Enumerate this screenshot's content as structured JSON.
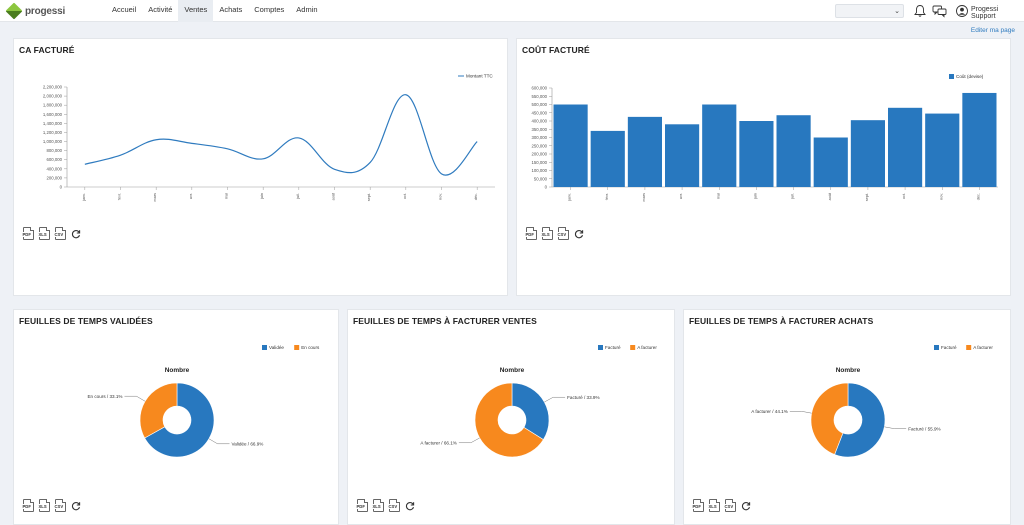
{
  "nav": {
    "logo": "progessi",
    "items": [
      "Accueil",
      "Activité",
      "Ventes",
      "Achats",
      "Comptes",
      "Admin"
    ],
    "active_index": 2
  },
  "header": {
    "user_name": "Progessi Support",
    "edit_page": "Editer ma page"
  },
  "export": {
    "pdf": "PDF",
    "xls": "XLS",
    "csv": "CSV"
  },
  "accent": "#2f7bbf",
  "panels": {
    "ca": {
      "title": "CA FACTURÉ",
      "chart_data": {
        "type": "line",
        "categories": [
          "janv.",
          "févr.",
          "mars",
          "avr.",
          "mai",
          "juin",
          "juil.",
          "août",
          "sept.",
          "oct.",
          "nov.",
          "déc."
        ],
        "series": [
          {
            "name": "Montant TTC",
            "values": [
              500000,
              700000,
              1040000,
              960000,
              840000,
              620000,
              1080000,
              390000,
              540000,
              2030000,
              290000,
              1000000
            ]
          }
        ],
        "ylim": [
          0,
          2200000
        ],
        "yticks": [
          "0",
          "200,000",
          "400,000",
          "600,000",
          "800,000",
          "1,000,000",
          "1,200,000",
          "1,400,000",
          "1,600,000",
          "1,800,000",
          "2,000,000",
          "2,200,000"
        ],
        "color": "#2f7bbf",
        "legend": "top-right"
      }
    },
    "cout": {
      "title": "COÛT FACTURÉ",
      "chart_data": {
        "type": "bar",
        "categories": [
          "janv.",
          "févr.",
          "mars",
          "avr.",
          "mai",
          "juin",
          "juil.",
          "août",
          "sept.",
          "oct.",
          "nov.",
          "déc."
        ],
        "series": [
          {
            "name": "Coût (devise)",
            "values": [
              500000,
              340000,
              425000,
              380000,
              500000,
              400000,
              435000,
              300000,
              405000,
              480000,
              445000,
              570000
            ]
          }
        ],
        "ylim": [
          0,
          600000
        ],
        "yticks": [
          "0",
          "50,000",
          "100,000",
          "150,000",
          "200,000",
          "250,000",
          "300,000",
          "350,000",
          "400,000",
          "450,000",
          "500,000",
          "550,000",
          "600,000"
        ],
        "color": "#2878bf",
        "legend": "top-right"
      }
    },
    "validees": {
      "title": "FEUILLES DE TEMPS VALIDÉES",
      "chart_data": {
        "type": "pie",
        "title": "Nombre",
        "labels": [
          "Validée",
          "En cours"
        ],
        "values": [
          66.9,
          33.1
        ],
        "slice_labels": [
          "Validée / 66.9%",
          "En cours / 33.1%"
        ],
        "colors": [
          "#2878bf",
          "#f7891e"
        ],
        "legend": "top-right"
      }
    },
    "ventes": {
      "title": "FEUILLES DE TEMPS À FACTURER VENTES",
      "chart_data": {
        "type": "pie",
        "title": "Nombre",
        "labels": [
          "Facturé",
          "A facturer"
        ],
        "values": [
          33.9,
          66.1
        ],
        "slice_labels": [
          "Facturé / 33.9%",
          "A facturer / 66.1%"
        ],
        "colors": [
          "#2878bf",
          "#f7891e"
        ],
        "legend": "top-right"
      }
    },
    "achats": {
      "title": "FEUILLES DE TEMPS À FACTURER ACHATS",
      "chart_data": {
        "type": "pie",
        "title": "Nombre",
        "labels": [
          "Facturé",
          "A facturer"
        ],
        "values": [
          55.9,
          44.1
        ],
        "slice_labels": [
          "Facturé / 55.9%",
          "A facturer / 44.1%"
        ],
        "colors": [
          "#2878bf",
          "#f7891e"
        ],
        "legend": "top-right"
      }
    }
  }
}
